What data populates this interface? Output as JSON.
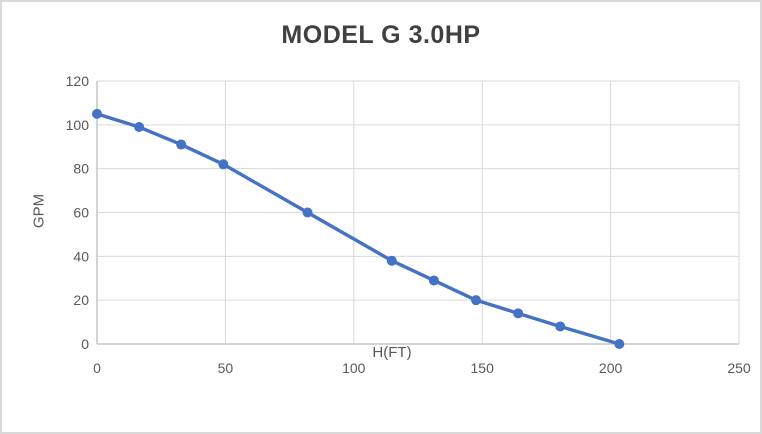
{
  "chart_data": {
    "type": "line",
    "title": "MODEL G 3.0HP",
    "xlabel": "H(FT)",
    "ylabel": "GPM",
    "x": [
      0,
      16.4,
      32.8,
      49.2,
      82.0,
      114.8,
      131.2,
      147.6,
      164.0,
      180.4,
      203.4
    ],
    "series": [
      {
        "name": "GPM",
        "values": [
          105,
          99,
          91,
          82,
          60,
          38,
          29,
          20,
          14,
          8,
          0
        ]
      }
    ],
    "xlim": [
      0,
      250
    ],
    "ylim": [
      0,
      120
    ],
    "xticks": [
      0,
      50,
      100,
      150,
      200,
      250
    ],
    "yticks": [
      0,
      20,
      40,
      60,
      80,
      100,
      120
    ],
    "grid": true,
    "legend": "none",
    "marker": "circle",
    "colors": {
      "line": "#4472C4",
      "marker": "#4472C4",
      "gridline": "#D9D9D9",
      "axis_line": "#C6C6C6",
      "tick_label": "#595959",
      "axis_title": "#595959",
      "chart_title": "#404040",
      "frame_border": "#D9D9D9",
      "background": "#FFFFFF"
    }
  }
}
